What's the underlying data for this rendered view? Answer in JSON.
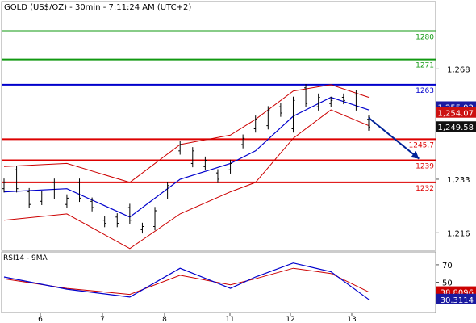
{
  "title": "GOLD (US$/OZ) - 30min - 7:11:24 AM (UTC+2)",
  "colors": {
    "price_bars": "#000000",
    "bollinger": "#cc0000",
    "moving_average": "#0000cc",
    "support_line": "#dd0000",
    "resistance_line": "#119911",
    "pivot_line": "#0000cc",
    "rsi": "#0000cc",
    "rsi_ma": "#cc0000",
    "forecast_arrow": "#002299",
    "tag_blue": "#1a1aa0",
    "tag_red": "#cc1111",
    "tag_black": "#111111",
    "tag_rsi_red": "#cc0000",
    "tag_rsi_blue": "#1a1aa0"
  },
  "chart_data": [
    {
      "type": "candlestick",
      "title": "GOLD (US$/OZ) - 30min - 7:11:24 AM (UTC+2)",
      "x_tick_labels": [
        "6",
        "7",
        "8",
        "11",
        "12",
        "13"
      ],
      "y_tick_labels": [
        "1,268",
        "1,233",
        "1,216"
      ],
      "y_ticks": [
        1268,
        1233,
        1216
      ],
      "ylim": [
        1210.7,
        1289.1
      ],
      "grid": false,
      "horizontal_levels": [
        {
          "label": "1280",
          "value": 1280,
          "color": "resistance"
        },
        {
          "label": "1271",
          "value": 1271,
          "color": "resistance"
        },
        {
          "label": "1263",
          "value": 1263,
          "color": "pivot"
        },
        {
          "label": "1245.7",
          "value": 1245.7,
          "color": "support"
        },
        {
          "label": "1239",
          "value": 1239,
          "color": "support"
        },
        {
          "label": "1232",
          "value": 1232,
          "color": "support"
        }
      ],
      "value_tags": [
        {
          "label": "1,255.92",
          "value": 1255.92,
          "color": "blue"
        },
        {
          "label": "1,254.07",
          "value": 1254.07,
          "color": "red"
        },
        {
          "label": "1,249.58",
          "value": 1249.58,
          "color": "black"
        }
      ],
      "forecast_arrow": {
        "from": [
          0.0,
          1252.5
        ],
        "to": [
          4.0,
          1239.5
        ]
      },
      "series": [
        {
          "key": "price",
          "points": [
            [
              1230,
              1232
            ],
            [
              1236,
              1230
            ],
            [
              1229,
              1225
            ],
            [
              1226,
              1228
            ],
            [
              1232,
              1228
            ],
            [
              1225,
              1227
            ],
            [
              1232,
              1227
            ],
            [
              1226,
              1224
            ],
            [
              1220,
              1219
            ],
            [
              1221,
              1219
            ],
            [
              1224,
              1220
            ],
            [
              1217,
              1218
            ],
            [
              1218,
              1223
            ],
            [
              1228,
              1231
            ],
            [
              1242,
              1244
            ],
            [
              1238,
              1242
            ],
            [
              1237,
              1239
            ],
            [
              1235,
              1233
            ],
            [
              1236,
              1238
            ],
            [
              1244,
              1246
            ],
            [
              1249,
              1252
            ],
            [
              1250,
              1255
            ],
            [
              1256,
              1254
            ],
            [
              1249,
              1258
            ],
            [
              1262,
              1257
            ],
            [
              1256,
              1259
            ],
            [
              1257,
              1258
            ],
            [
              1259,
              1258
            ],
            [
              1260,
              1256
            ],
            [
              1252,
              1249.58
            ]
          ]
        },
        {
          "key": "bollinger_upper",
          "points": [
            [
              0,
              1237
            ],
            [
              5,
              1238
            ],
            [
              10,
              1232
            ],
            [
              14,
              1244
            ],
            [
              18,
              1247
            ],
            [
              20,
              1252
            ],
            [
              23,
              1261
            ],
            [
              26,
              1263
            ],
            [
              29,
              1259
            ]
          ]
        },
        {
          "key": "bollinger_lower",
          "points": [
            [
              0,
              1220
            ],
            [
              5,
              1222
            ],
            [
              10,
              1211
            ],
            [
              14,
              1222
            ],
            [
              18,
              1229
            ],
            [
              20,
              1232
            ],
            [
              23,
              1246
            ],
            [
              26,
              1255
            ],
            [
              29,
              1250
            ]
          ]
        },
        {
          "key": "moving_average",
          "points": [
            [
              0,
              1229
            ],
            [
              5,
              1230
            ],
            [
              10,
              1221
            ],
            [
              14,
              1233
            ],
            [
              18,
              1238
            ],
            [
              20,
              1242
            ],
            [
              23,
              1253
            ],
            [
              26,
              1259
            ],
            [
              29,
              1255
            ]
          ]
        }
      ]
    },
    {
      "type": "line",
      "title": "RSI14 - 9MA",
      "x_tick_labels": [
        "6",
        "7",
        "8",
        "11",
        "12",
        "13"
      ],
      "y_tick_labels": [
        "70",
        "50"
      ],
      "y_ticks": [
        70,
        50
      ],
      "ylim": [
        16.2,
        83.8
      ],
      "grid": false,
      "value_tags": [
        {
          "label": "38.8096",
          "value": 38.8096,
          "color": "red"
        },
        {
          "label": "30.3114",
          "value": 30.3114,
          "color": "blue"
        }
      ],
      "series": [
        {
          "key": "rsi",
          "points": [
            [
              0,
              56
            ],
            [
              5,
              42
            ],
            [
              10,
              33
            ],
            [
              14,
              66
            ],
            [
              18,
              43
            ],
            [
              20,
              56
            ],
            [
              23,
              72
            ],
            [
              26,
              62
            ],
            [
              29,
              30.3114
            ]
          ]
        },
        {
          "key": "rsi_ma",
          "points": [
            [
              0,
              54
            ],
            [
              5,
              43
            ],
            [
              10,
              36
            ],
            [
              14,
              58
            ],
            [
              18,
              47
            ],
            [
              20,
              54
            ],
            [
              23,
              66
            ],
            [
              26,
              60
            ],
            [
              29,
              38.8096
            ]
          ]
        }
      ]
    }
  ],
  "rsi_panel": {
    "label": "RSI14 - 9MA"
  }
}
